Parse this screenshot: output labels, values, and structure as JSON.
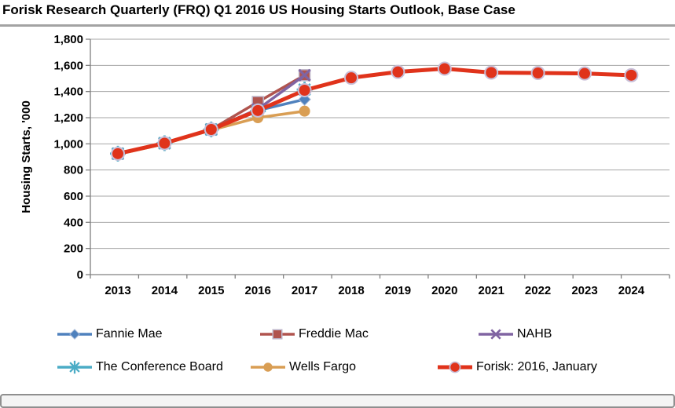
{
  "title": "Forisk Research Quarterly (FRQ) Q1 2016 US Housing Starts Outlook, Base Case",
  "chart_data": {
    "type": "line",
    "title": "Forisk Research Quarterly (FRQ) Q1 2016 US Housing Starts Outlook, Base Case",
    "x": [
      "2013",
      "2014",
      "2015",
      "2016",
      "2017",
      "2018",
      "2019",
      "2020",
      "2021",
      "2022",
      "2023",
      "2024"
    ],
    "xlabel": "",
    "ylabel": "Housing Starts, '000",
    "ylim": [
      0,
      1800
    ],
    "ytick_step": 200,
    "ytick_labels": [
      "0",
      "200",
      "400",
      "600",
      "800",
      "1,000",
      "1,200",
      "1,400",
      "1,600",
      "1,800"
    ],
    "grid": true,
    "legend_position": "bottom",
    "axis_color": "#808080",
    "grid_color": "#a6a6a6",
    "series": [
      {
        "name": "Fannie Mae",
        "color": "#4F81BD",
        "marker": "diamond",
        "thick": false,
        "values": [
          925,
          1005,
          1110,
          1255,
          1340,
          null,
          null,
          null,
          null,
          null,
          null,
          null
        ]
      },
      {
        "name": "Freddie Mac",
        "color": "#B0544E",
        "marker": "square",
        "thick": false,
        "values": [
          925,
          1005,
          1110,
          1320,
          1525,
          null,
          null,
          null,
          null,
          null,
          null,
          null
        ]
      },
      {
        "name": "NAHB",
        "color": "#8064A2",
        "marker": "x",
        "thick": false,
        "values": [
          925,
          1005,
          1110,
          1265,
          1525,
          null,
          null,
          null,
          null,
          null,
          null,
          null
        ]
      },
      {
        "name": "The Conference Board",
        "color": "#4BACC6",
        "marker": "asterisk",
        "thick": false,
        "values": [
          925,
          1005,
          1110,
          1250,
          1415,
          null,
          null,
          null,
          null,
          null,
          null,
          null
        ]
      },
      {
        "name": "Wells Fargo",
        "color": "#D99E54",
        "marker": "circle",
        "thick": false,
        "values": [
          920,
          1000,
          1105,
          1200,
          1250,
          null,
          null,
          null,
          null,
          null,
          null,
          null
        ]
      },
      {
        "name": "Forisk: 2016, January",
        "color": "#E0331B",
        "marker": "circle-outlined",
        "thick": true,
        "values": [
          925,
          1005,
          1110,
          1255,
          1410,
          1505,
          1550,
          1575,
          1545,
          1542,
          1538,
          1525
        ]
      }
    ]
  }
}
